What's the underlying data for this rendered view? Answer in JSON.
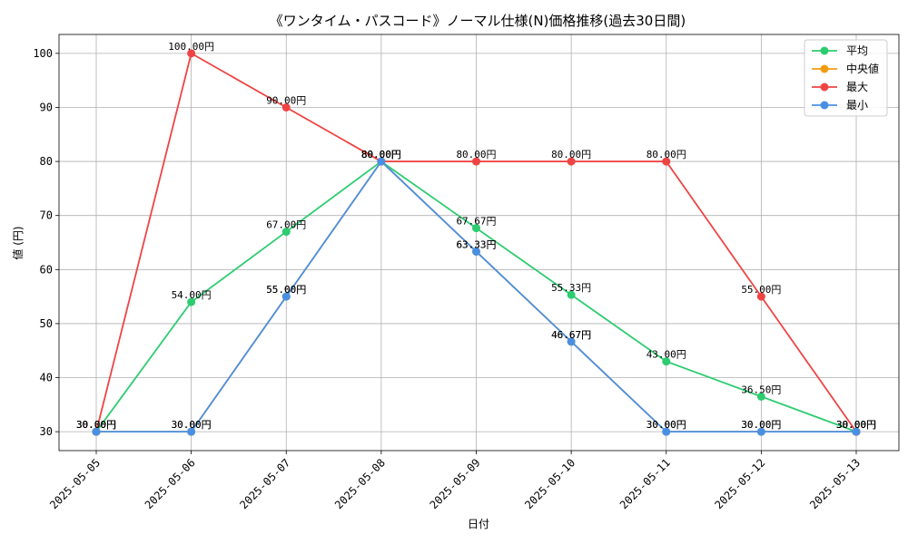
{
  "chart_data": {
    "type": "line",
    "title": "《ワンタイム・パスコード》ノーマル仕様(N)価格推移(過去30日間)",
    "xlabel": "日付",
    "ylabel": "値 (円)",
    "ylim": [
      26.5,
      103.5
    ],
    "yticks": [
      30,
      40,
      50,
      60,
      70,
      80,
      90,
      100
    ],
    "grid": true,
    "legend_position": "top-right",
    "label_suffix": "円",
    "categories": [
      "2025-05-05",
      "2025-05-06",
      "2025-05-07",
      "2025-05-08",
      "2025-05-09",
      "2025-05-10",
      "2025-05-11",
      "2025-05-12",
      "2025-05-13"
    ],
    "series": [
      {
        "name": "平均",
        "color": "#2ecc71",
        "values": [
          30.0,
          54.0,
          67.0,
          80.0,
          67.67,
          55.33,
          43.0,
          36.5,
          30.0
        ]
      },
      {
        "name": "中央値",
        "color": "#f39c12",
        "values": [
          30.0,
          30.0,
          55.0,
          80.0,
          63.33,
          46.67,
          30.0,
          30.0,
          30.0
        ]
      },
      {
        "name": "最大",
        "color": "#ef4444",
        "values": [
          30.0,
          100.0,
          90.0,
          80.0,
          80.0,
          80.0,
          80.0,
          55.0,
          30.0
        ]
      },
      {
        "name": "最小",
        "color": "#4a90e2",
        "values": [
          30.0,
          30.0,
          55.0,
          80.0,
          63.33,
          46.67,
          30.0,
          30.0,
          30.0
        ]
      }
    ]
  }
}
